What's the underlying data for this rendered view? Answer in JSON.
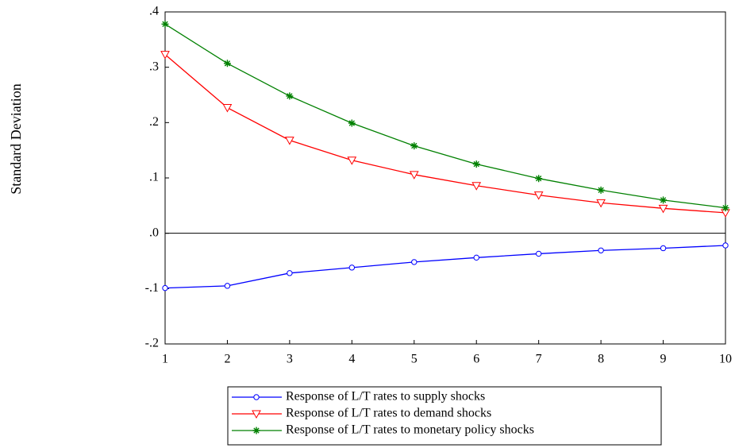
{
  "chart_data": {
    "type": "line",
    "y_label": "Standard Deviation",
    "x": [
      1,
      2,
      3,
      4,
      5,
      6,
      7,
      8,
      9,
      10
    ],
    "xlim": [
      1,
      10
    ],
    "xticks": [
      1,
      2,
      3,
      4,
      5,
      6,
      7,
      8,
      9,
      10
    ],
    "ylim": [
      -0.2,
      0.4
    ],
    "yticks": [
      {
        "value": 0.4,
        "label": ".4"
      },
      {
        "value": 0.3,
        "label": ".3"
      },
      {
        "value": 0.2,
        "label": ".2"
      },
      {
        "value": 0.1,
        "label": ".1"
      },
      {
        "value": 0,
        "label": ".0"
      },
      {
        "value": -0.1,
        "label": "-.1"
      },
      {
        "value": -0.2,
        "label": "-.2"
      }
    ],
    "zero_line": true,
    "legend": "bottom",
    "series": [
      {
        "name": "Response of L/T rates to supply shocks",
        "color": "#0000ff",
        "marker": "circle",
        "values": [
          -0.099,
          -0.095,
          -0.072,
          -0.062,
          -0.052,
          -0.044,
          -0.037,
          -0.031,
          -0.027,
          -0.022
        ]
      },
      {
        "name": "Response of L/T rates to demand shocks",
        "color": "#ff0000",
        "marker": "triangle-down",
        "values": [
          0.323,
          0.227,
          0.168,
          0.132,
          0.106,
          0.086,
          0.069,
          0.055,
          0.045,
          0.037
        ]
      },
      {
        "name": "Response of L/T rates to monetary policy shocks",
        "color": "#008000",
        "marker": "star",
        "values": [
          0.378,
          0.307,
          0.248,
          0.199,
          0.158,
          0.125,
          0.099,
          0.078,
          0.06,
          0.046
        ]
      }
    ]
  }
}
